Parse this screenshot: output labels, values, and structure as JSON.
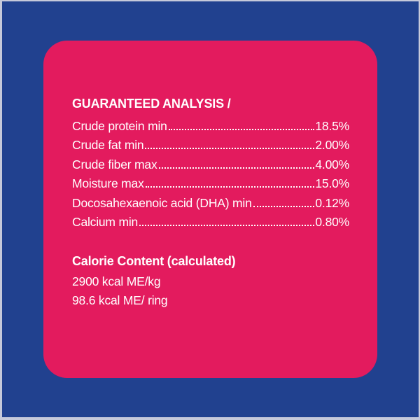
{
  "colors": {
    "background_blue": "#21418f",
    "card_pink": "#e31b5e",
    "text_white": "#ffffff",
    "photo_edge": "#c6c9da"
  },
  "card": {
    "analysis": {
      "heading": "GUARANTEED ANALYSIS /",
      "rows": [
        {
          "label": "Crude protein min",
          "value": "18.5%"
        },
        {
          "label": "Crude fat min",
          "value": "2.00%"
        },
        {
          "label": "Crude fiber max",
          "value": "4.00%"
        },
        {
          "label": "Moisture max",
          "value": "15.0%"
        },
        {
          "label": "Docosahexaenoic acid (DHA) min",
          "value": "0.12%"
        },
        {
          "label": "Calcium min",
          "value": "0.80%"
        }
      ]
    },
    "calories": {
      "heading": "Calorie Content (calculated)",
      "lines": [
        "2900 kcal ME/kg",
        "98.6 kcal ME/ ring"
      ]
    }
  }
}
